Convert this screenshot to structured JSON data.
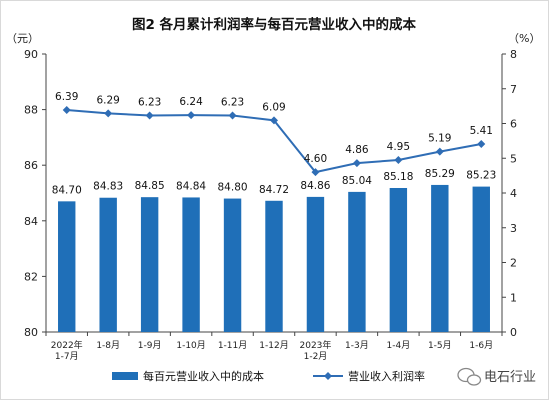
{
  "chart_data": {
    "type": "bar",
    "title": "图2  各月累计利润率与每百元营业收入中的成本",
    "left_unit": "（元）",
    "right_unit": "（%）",
    "categories": [
      [
        "2022年",
        "1-7月"
      ],
      [
        "1-8月"
      ],
      [
        "1-9月"
      ],
      [
        "1-10月"
      ],
      [
        "1-11月"
      ],
      [
        "1-12月"
      ],
      [
        "2023年",
        "1-2月"
      ],
      [
        "1-3月"
      ],
      [
        "1-4月"
      ],
      [
        "1-5月"
      ],
      [
        "1-6月"
      ]
    ],
    "series": [
      {
        "name": "每百元营业收入中的成本",
        "type": "bar",
        "axis": "left",
        "color": "#1f6fb8",
        "values": [
          84.7,
          84.83,
          84.85,
          84.84,
          84.8,
          84.72,
          84.86,
          85.04,
          85.18,
          85.29,
          85.23
        ],
        "labels": [
          "84.70",
          "84.83",
          "84.85",
          "84.84",
          "84.80",
          "84.72",
          "84.86",
          "85.04",
          "85.18",
          "85.29",
          "85.23"
        ]
      },
      {
        "name": "营业收入利润率",
        "type": "line",
        "axis": "right",
        "color": "#2f6db5",
        "marker": "diamond",
        "values": [
          6.39,
          6.29,
          6.23,
          6.24,
          6.23,
          6.09,
          4.6,
          4.86,
          4.95,
          5.19,
          5.41
        ],
        "labels": [
          "6.39",
          "6.29",
          "6.23",
          "6.24",
          "6.23",
          "6.09",
          "4.60",
          "4.86",
          "4.95",
          "5.19",
          "5.41"
        ]
      }
    ],
    "y_left": {
      "min": 80,
      "max": 90,
      "ticks": [
        "80",
        "82",
        "84",
        "86",
        "88",
        "90"
      ]
    },
    "y_right": {
      "min": 0,
      "max": 8,
      "ticks": [
        "0",
        "1",
        "2",
        "3",
        "4",
        "5",
        "6",
        "7",
        "8"
      ]
    },
    "grid": false,
    "legend_position": "bottom"
  },
  "watermark": {
    "text": "电石行业",
    "icon": "wechat-icon"
  }
}
